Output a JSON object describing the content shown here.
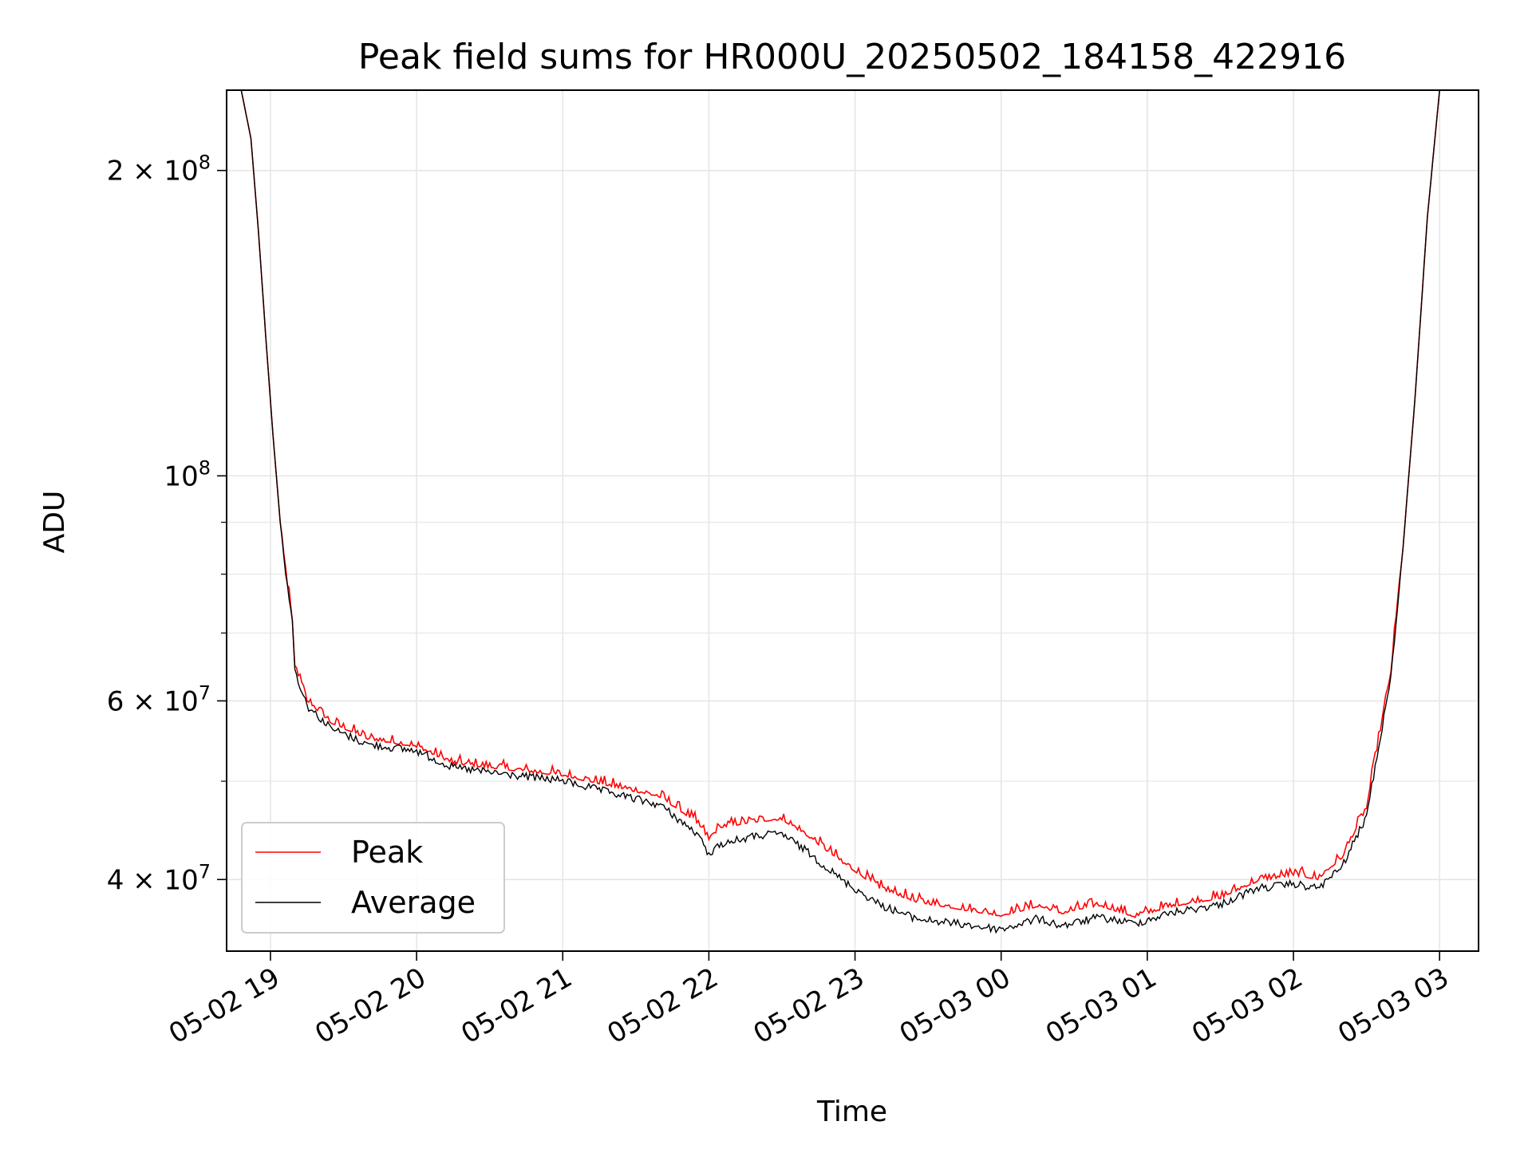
{
  "chart_data": {
    "type": "line",
    "title": "Peak field sums for HR000U_20250502_184158_422916",
    "xlabel": "Time",
    "ylabel": "ADU",
    "x_range": [
      "2025-05-02 18:42",
      "2025-05-03 03:16"
    ],
    "y_scale": "log",
    "ylim": [
      34000000,
      240000000
    ],
    "grid": true,
    "legend_position": "lower-left",
    "x_ticks": [
      {
        "time": "2025-05-02 19:00",
        "label": "05-02 19"
      },
      {
        "time": "2025-05-02 20:00",
        "label": "05-02 20"
      },
      {
        "time": "2025-05-02 21:00",
        "label": "05-02 21"
      },
      {
        "time": "2025-05-02 22:00",
        "label": "05-02 22"
      },
      {
        "time": "2025-05-02 23:00",
        "label": "05-02 23"
      },
      {
        "time": "2025-05-03 00:00",
        "label": "05-03 00"
      },
      {
        "time": "2025-05-03 01:00",
        "label": "05-03 01"
      },
      {
        "time": "2025-05-03 02:00",
        "label": "05-03 02"
      },
      {
        "time": "2025-05-03 03:00",
        "label": "05-03 03"
      }
    ],
    "y_ticks": [
      {
        "value": 200000000,
        "base": "2 × 10",
        "exp": "8"
      },
      {
        "value": 100000000,
        "base": "10",
        "exp": "8"
      },
      {
        "value": 60000000,
        "base": "6 × 10",
        "exp": "7"
      },
      {
        "value": 40000000,
        "base": "4 × 10",
        "exp": "7"
      }
    ],
    "y_minor_ticks": [
      50000000,
      70000000,
      80000000,
      90000000
    ],
    "series": [
      {
        "name": "Peak",
        "color": "#ff0000",
        "points": [
          [
            "2025-05-02 18:48",
            240000000
          ],
          [
            "2025-05-02 18:52",
            215000000
          ],
          [
            "2025-05-02 18:55",
            175000000
          ],
          [
            "2025-05-02 18:58",
            138000000
          ],
          [
            "2025-05-02 19:01",
            110000000
          ],
          [
            "2025-05-02 19:04",
            90000000
          ],
          [
            "2025-05-02 19:07",
            78000000
          ],
          [
            "2025-05-02 19:09",
            72000000
          ],
          [
            "2025-05-02 19:10",
            65000000
          ],
          [
            "2025-05-02 19:15",
            60000000
          ],
          [
            "2025-05-02 19:25",
            57000000
          ],
          [
            "2025-05-02 19:40",
            55000000
          ],
          [
            "2025-05-02 20:00",
            54000000
          ],
          [
            "2025-05-02 20:15",
            52000000
          ],
          [
            "2025-05-02 20:40",
            51200000
          ],
          [
            "2025-05-02 21:00",
            50600000
          ],
          [
            "2025-05-02 21:20",
            49400000
          ],
          [
            "2025-05-02 21:40",
            48200000
          ],
          [
            "2025-05-02 21:55",
            45500000
          ],
          [
            "2025-05-02 22:00",
            43800000
          ],
          [
            "2025-05-02 22:05",
            45000000
          ],
          [
            "2025-05-02 22:20",
            45600000
          ],
          [
            "2025-05-02 22:30",
            45800000
          ],
          [
            "2025-05-02 22:40",
            44200000
          ],
          [
            "2025-05-02 22:55",
            41500000
          ],
          [
            "2025-05-02 23:10",
            39200000
          ],
          [
            "2025-05-02 23:25",
            38000000
          ],
          [
            "2025-05-02 23:45",
            37300000
          ],
          [
            "2025-05-03 00:00",
            36800000
          ],
          [
            "2025-05-03 00:15",
            37600000
          ],
          [
            "2025-05-03 00:25",
            37000000
          ],
          [
            "2025-05-03 00:40",
            37700000
          ],
          [
            "2025-05-03 00:55",
            36700000
          ],
          [
            "2025-05-03 01:10",
            37600000
          ],
          [
            "2025-05-03 01:30",
            38300000
          ],
          [
            "2025-05-03 01:45",
            39800000
          ],
          [
            "2025-05-03 02:00",
            40400000
          ],
          [
            "2025-05-03 02:10",
            40000000
          ],
          [
            "2025-05-03 02:20",
            42000000
          ],
          [
            "2025-05-03 02:30",
            47000000
          ],
          [
            "2025-05-03 02:40",
            64000000
          ],
          [
            "2025-05-03 02:45",
            85000000
          ],
          [
            "2025-05-03 02:50",
            120000000
          ],
          [
            "2025-05-03 02:55",
            180000000
          ],
          [
            "2025-05-03 03:00",
            240000000
          ]
        ]
      },
      {
        "name": "Average",
        "color": "#000000",
        "points": [
          [
            "2025-05-02 18:48",
            240000000
          ],
          [
            "2025-05-02 18:52",
            215000000
          ],
          [
            "2025-05-02 18:55",
            175000000
          ],
          [
            "2025-05-02 18:58",
            138000000
          ],
          [
            "2025-05-02 19:01",
            110000000
          ],
          [
            "2025-05-02 19:04",
            90000000
          ],
          [
            "2025-05-02 19:07",
            78000000
          ],
          [
            "2025-05-02 19:09",
            72000000
          ],
          [
            "2025-05-02 19:10",
            64500000
          ],
          [
            "2025-05-02 19:15",
            59500000
          ],
          [
            "2025-05-02 19:25",
            56500000
          ],
          [
            "2025-05-02 19:40",
            54500000
          ],
          [
            "2025-05-02 20:00",
            53700000
          ],
          [
            "2025-05-02 20:15",
            51700000
          ],
          [
            "2025-05-02 20:40",
            50800000
          ],
          [
            "2025-05-02 21:00",
            50200000
          ],
          [
            "2025-05-02 21:20",
            48800000
          ],
          [
            "2025-05-02 21:40",
            47500000
          ],
          [
            "2025-05-02 21:55",
            44500000
          ],
          [
            "2025-05-02 22:00",
            42500000
          ],
          [
            "2025-05-02 22:05",
            43500000
          ],
          [
            "2025-05-02 22:20",
            44300000
          ],
          [
            "2025-05-02 22:30",
            44500000
          ],
          [
            "2025-05-02 22:40",
            42800000
          ],
          [
            "2025-05-02 22:55",
            40000000
          ],
          [
            "2025-05-02 23:10",
            37900000
          ],
          [
            "2025-05-02 23:25",
            36700000
          ],
          [
            "2025-05-02 23:45",
            36200000
          ],
          [
            "2025-05-03 00:00",
            35800000
          ],
          [
            "2025-05-03 00:15",
            36700000
          ],
          [
            "2025-05-03 00:25",
            36100000
          ],
          [
            "2025-05-03 00:40",
            36800000
          ],
          [
            "2025-05-03 00:55",
            36300000
          ],
          [
            "2025-05-03 01:10",
            37200000
          ],
          [
            "2025-05-03 01:30",
            37900000
          ],
          [
            "2025-05-03 01:45",
            39300000
          ],
          [
            "2025-05-03 02:00",
            39700000
          ],
          [
            "2025-05-03 02:10",
            39300000
          ],
          [
            "2025-05-03 02:20",
            41300000
          ],
          [
            "2025-05-03 02:30",
            46300000
          ],
          [
            "2025-05-03 02:40",
            63500000
          ],
          [
            "2025-05-03 02:45",
            85000000
          ],
          [
            "2025-05-03 02:50",
            120000000
          ],
          [
            "2025-05-03 02:55",
            180000000
          ],
          [
            "2025-05-03 03:00",
            240000000
          ]
        ]
      }
    ]
  }
}
